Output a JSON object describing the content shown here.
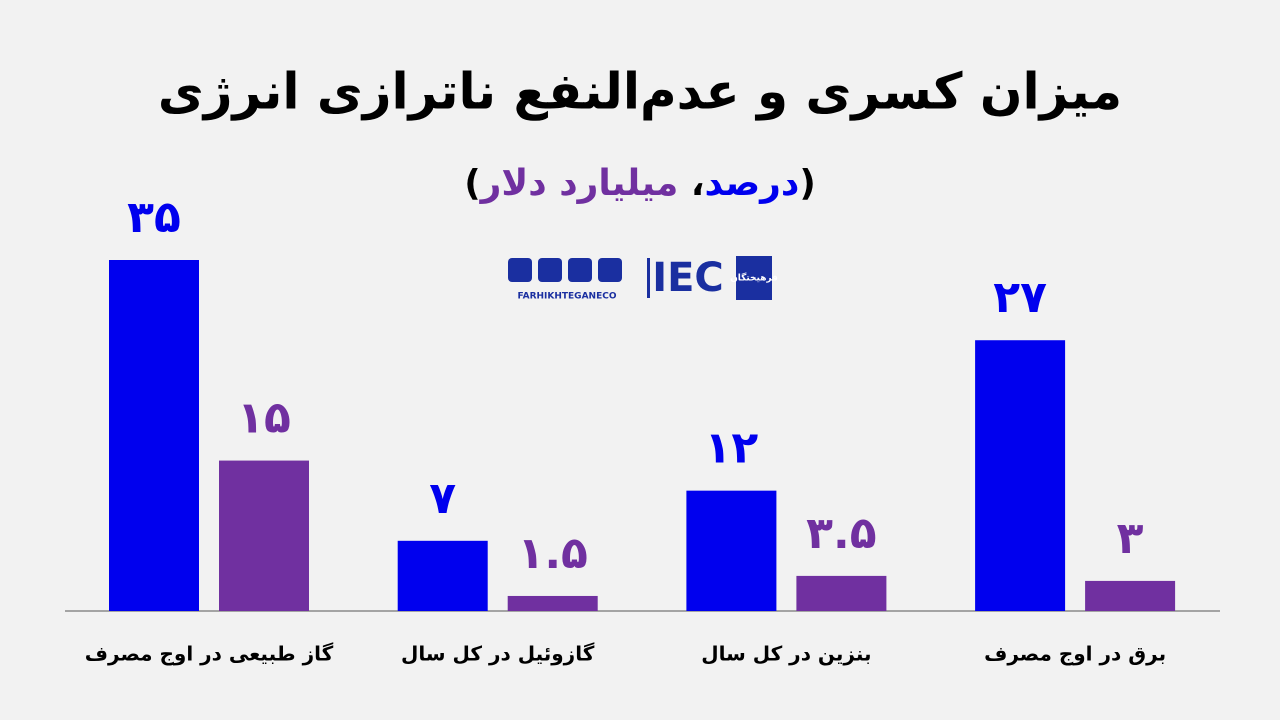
{
  "chart_data": {
    "type": "bar",
    "title": "میزان کسری و عدم‌النفع ناترازی انرژی",
    "legend": {
      "open": "(",
      "separator": "،",
      "close": ")"
    },
    "categories": [
      "گاز طبیعی در اوج مصرف",
      "گازوئیل در کل سال",
      "بنزین در کل سال",
      "برق در اوج مصرف"
    ],
    "series": [
      {
        "name": "درصد",
        "color": "#0000ee",
        "values": [
          35,
          7,
          12,
          27
        ],
        "value_labels": [
          "۳۵",
          "۷",
          "۱۲",
          "۲۷"
        ]
      },
      {
        "name": "میلیارد دلار",
        "color": "#7030a0",
        "values": [
          15,
          1.5,
          3.5,
          3
        ],
        "value_labels": [
          "۱۵",
          "۱.۵",
          "۳.۵",
          "۳"
        ]
      }
    ],
    "ylim": [
      0,
      35
    ],
    "logo": {
      "brand": "IEC",
      "site": "FARHIKHTEGANECO",
      "badge": "فرهیختگان"
    }
  }
}
